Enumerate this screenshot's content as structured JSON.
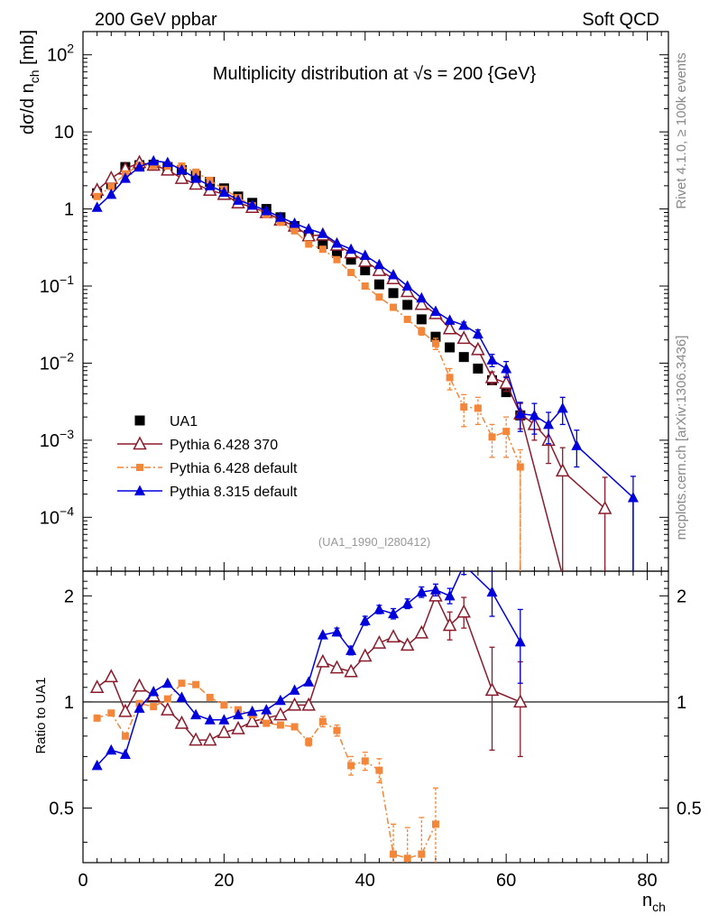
{
  "header": {
    "left": "200 GeV ppbar",
    "right": "Soft QCD"
  },
  "side_labels": {
    "top": "Rivet 4.1.0, ≥ 100k events",
    "bottom": "mcplots.cern.ch [arXiv:1306.3436]"
  },
  "chart_data": {
    "type": "scatter",
    "title": "Multiplicity distribution at √s = 200 {GeV}",
    "analysis_id": "(UA1_1990_I280412)",
    "xlabel": "n_ch",
    "ylabel": "dσ/d n_ch [mb]",
    "ratio_ylabel": "Ratio to UA1",
    "xlim": [
      0,
      83
    ],
    "ylim": [
      2e-05,
      200
    ],
    "ratio_ylim": [
      0.35,
      2.35
    ],
    "x_ticks": [
      "0",
      "20",
      "40",
      "60",
      "80"
    ],
    "y_ticks": [
      {
        "value": 100,
        "label": "10^2"
      },
      {
        "value": 10,
        "label": "10"
      },
      {
        "value": 1,
        "label": "1"
      },
      {
        "value": 0.1,
        "label": "10^-1"
      },
      {
        "value": 0.01,
        "label": "10^-2"
      },
      {
        "value": 0.001,
        "label": "10^-3"
      },
      {
        "value": 0.0001,
        "label": "10^-4"
      }
    ],
    "ratio_ticks": [
      {
        "value": 0.5,
        "label": "0.5"
      },
      {
        "value": 1,
        "label": "1"
      },
      {
        "value": 2,
        "label": "2"
      }
    ],
    "legend_position": "bottom-left",
    "series": [
      {
        "name": "UA1",
        "color": "#000000",
        "marker": "square",
        "line": "none",
        "x": [
          2,
          4,
          6,
          8,
          10,
          12,
          14,
          16,
          18,
          20,
          22,
          24,
          26,
          28,
          30,
          32,
          34,
          36,
          38,
          40,
          42,
          44,
          46,
          48,
          50,
          52,
          54,
          56,
          58,
          60,
          62
        ],
        "y": [
          1.6,
          2.1,
          3.5,
          3.7,
          3.75,
          3.5,
          3.2,
          2.7,
          2.25,
          1.85,
          1.45,
          1.2,
          1.0,
          0.78,
          0.6,
          0.46,
          0.35,
          0.27,
          0.22,
          0.16,
          0.105,
          0.081,
          0.057,
          0.037,
          0.022,
          0.016,
          0.012,
          0.0085,
          0.006,
          0.0042,
          0.0021
        ]
      },
      {
        "name": "Pythia 6.428 370",
        "color": "#8b1a2b",
        "marker": "triangle-open",
        "line": "solid",
        "x": [
          2,
          4,
          6,
          8,
          10,
          12,
          14,
          16,
          18,
          20,
          22,
          24,
          26,
          28,
          30,
          32,
          34,
          36,
          38,
          40,
          42,
          44,
          46,
          48,
          50,
          52,
          54,
          56,
          58,
          60,
          62,
          64,
          66,
          68,
          74
        ],
        "y": [
          1.75,
          2.5,
          3.3,
          4.0,
          3.7,
          3.2,
          2.5,
          2.1,
          1.75,
          1.55,
          1.2,
          1.05,
          0.9,
          0.72,
          0.6,
          0.45,
          0.46,
          0.34,
          0.27,
          0.21,
          0.16,
          0.125,
          0.085,
          0.058,
          0.044,
          0.028,
          0.021,
          0.015,
          0.0065,
          0.0055,
          0.0022,
          0.0016,
          0.001,
          0.0004,
          0.00013
        ],
        "err_low": [
          0,
          0,
          0,
          0,
          0,
          0,
          0,
          0,
          0,
          0,
          0,
          0,
          0,
          0,
          0,
          0,
          0,
          0,
          0,
          0,
          0,
          0,
          0,
          0,
          0,
          0.002,
          0.002,
          0.0015,
          0.0012,
          0.0012,
          0.0008,
          0.0006,
          0.0005,
          0.0004,
          0.00013
        ],
        "err_high": [
          0,
          0,
          0,
          0,
          0,
          0,
          0,
          0,
          0,
          0,
          0,
          0,
          0,
          0,
          0,
          0,
          0,
          0,
          0,
          0,
          0,
          0,
          0,
          0,
          0,
          0.002,
          0.002,
          0.0015,
          0.0012,
          0.0012,
          0.0008,
          0.0006,
          0.0005,
          0.0004,
          0.0002
        ]
      },
      {
        "name": "Pythia 6.428 default",
        "color": "#f4863a",
        "marker": "square-small",
        "line": "dashdot",
        "x": [
          2,
          4,
          6,
          8,
          10,
          12,
          14,
          16,
          18,
          20,
          22,
          24,
          26,
          28,
          30,
          32,
          34,
          36,
          38,
          40,
          42,
          44,
          46,
          48,
          50,
          52,
          54,
          56,
          58,
          60,
          62
        ],
        "y": [
          1.45,
          1.95,
          2.85,
          3.7,
          3.65,
          3.6,
          3.6,
          3.0,
          2.35,
          1.8,
          1.4,
          1.1,
          0.85,
          0.67,
          0.52,
          0.35,
          0.3,
          0.22,
          0.15,
          0.1,
          0.072,
          0.053,
          0.037,
          0.026,
          0.018,
          0.0065,
          0.0027,
          0.0026,
          0.0011,
          0.0013,
          0.00045
        ],
        "err_low": [
          0,
          0,
          0,
          0,
          0,
          0,
          0,
          0,
          0,
          0,
          0,
          0,
          0,
          0,
          0,
          0,
          0,
          0,
          0,
          0,
          0,
          0,
          0.003,
          0.003,
          0.003,
          0.002,
          0.0012,
          0.001,
          0.0005,
          0.0007,
          0.00045
        ],
        "err_high": [
          0,
          0,
          0,
          0,
          0,
          0,
          0,
          0,
          0,
          0,
          0,
          0,
          0,
          0,
          0,
          0,
          0,
          0,
          0,
          0,
          0,
          0,
          0.003,
          0.003,
          0.003,
          0.002,
          0.0012,
          0.001,
          0.0005,
          0.0007,
          0.0003
        ]
      },
      {
        "name": "Pythia 8.315 default",
        "color": "#0000dd",
        "marker": "triangle",
        "line": "solid",
        "x": [
          2,
          4,
          6,
          8,
          10,
          12,
          14,
          16,
          18,
          20,
          22,
          24,
          26,
          28,
          30,
          32,
          34,
          36,
          38,
          40,
          42,
          44,
          46,
          48,
          50,
          52,
          54,
          56,
          58,
          60,
          62,
          64,
          66,
          68,
          70,
          78
        ],
        "y": [
          1.05,
          1.55,
          2.5,
          3.5,
          4.2,
          4.0,
          3.2,
          2.5,
          2.0,
          1.65,
          1.3,
          1.12,
          0.95,
          0.78,
          0.65,
          0.55,
          0.48,
          0.36,
          0.3,
          0.25,
          0.19,
          0.14,
          0.1,
          0.07,
          0.047,
          0.036,
          0.031,
          0.024,
          0.011,
          0.0085,
          0.0022,
          0.0021,
          0.0016,
          0.0026,
          0.00085,
          0.00018
        ],
        "err_low": [
          0,
          0,
          0,
          0,
          0,
          0,
          0,
          0,
          0,
          0,
          0,
          0,
          0,
          0,
          0,
          0,
          0,
          0,
          0,
          0,
          0,
          0,
          0,
          0,
          0,
          0,
          0.003,
          0.003,
          0.002,
          0.002,
          0.0009,
          0.0009,
          0.0007,
          0.001,
          0.0004,
          0.00018
        ],
        "err_high": [
          0,
          0,
          0,
          0,
          0,
          0,
          0,
          0,
          0,
          0,
          0,
          0,
          0,
          0,
          0,
          0,
          0,
          0,
          0,
          0,
          0,
          0,
          0,
          0,
          0,
          0,
          0.003,
          0.003,
          0.002,
          0.002,
          0.0009,
          0.0009,
          0.0007,
          0.001,
          0.0005,
          0.00016
        ]
      }
    ],
    "ratios": [
      {
        "name": "Pythia 6.428 370",
        "x": [
          2,
          4,
          6,
          8,
          10,
          12,
          14,
          16,
          18,
          20,
          22,
          24,
          26,
          28,
          30,
          32,
          34,
          36,
          38,
          40,
          42,
          44,
          46,
          48,
          50,
          52,
          54,
          58,
          62
        ],
        "y": [
          1.1,
          1.18,
          0.94,
          1.11,
          1.04,
          0.95,
          0.87,
          0.78,
          0.78,
          0.82,
          0.84,
          0.88,
          0.9,
          0.92,
          0.98,
          0.98,
          1.3,
          1.25,
          1.22,
          1.35,
          1.47,
          1.53,
          1.45,
          1.57,
          2.0,
          1.65,
          1.8,
          1.08,
          1.0
        ],
        "err": [
          0,
          0,
          0,
          0,
          0,
          0,
          0,
          0,
          0,
          0,
          0,
          0,
          0,
          0,
          0,
          0,
          0,
          0,
          0,
          0,
          0,
          0,
          0,
          0,
          0,
          0.15,
          0.18,
          0.35,
          0.3
        ]
      },
      {
        "name": "Pythia 6.428 default",
        "x": [
          2,
          4,
          6,
          8,
          10,
          12,
          14,
          16,
          18,
          20,
          22,
          24,
          26,
          28,
          30,
          32,
          34,
          36,
          38,
          40,
          42,
          44,
          46,
          48,
          50
        ],
        "y": [
          0.9,
          0.93,
          0.8,
          0.99,
          0.97,
          1.02,
          1.13,
          1.12,
          1.03,
          0.98,
          0.95,
          0.92,
          0.87,
          0.86,
          0.85,
          0.77,
          0.88,
          0.83,
          0.66,
          0.68,
          0.64,
          0.37,
          0.36,
          0.37,
          0.45
        ],
        "err": [
          0,
          0,
          0,
          0,
          0,
          0,
          0,
          0,
          0,
          0,
          0,
          0,
          0,
          0,
          0,
          0.02,
          0.03,
          0.03,
          0.04,
          0.04,
          0.05,
          0.08,
          0.08,
          0.1,
          0.12
        ]
      },
      {
        "name": "Pythia 8.315 default",
        "x": [
          2,
          4,
          6,
          8,
          10,
          12,
          14,
          16,
          18,
          20,
          22,
          24,
          26,
          28,
          30,
          32,
          34,
          36,
          38,
          40,
          42,
          44,
          46,
          48,
          50,
          52,
          54,
          58,
          62
        ],
        "y": [
          0.66,
          0.73,
          0.71,
          0.96,
          1.07,
          1.13,
          1.03,
          0.92,
          0.89,
          0.89,
          0.92,
          0.94,
          0.95,
          1.01,
          1.08,
          1.14,
          1.55,
          1.58,
          1.4,
          1.7,
          1.83,
          1.78,
          1.9,
          2.05,
          2.08,
          2.0,
          2.45,
          2.05,
          1.48
        ],
        "err": [
          0,
          0,
          0,
          0,
          0,
          0,
          0,
          0,
          0,
          0,
          0,
          0,
          0,
          0,
          0,
          0,
          0,
          0.04,
          0.04,
          0.05,
          0.05,
          0.06,
          0.06,
          0.07,
          0.08,
          0.1,
          0.15,
          0.3,
          0.35
        ]
      }
    ]
  }
}
